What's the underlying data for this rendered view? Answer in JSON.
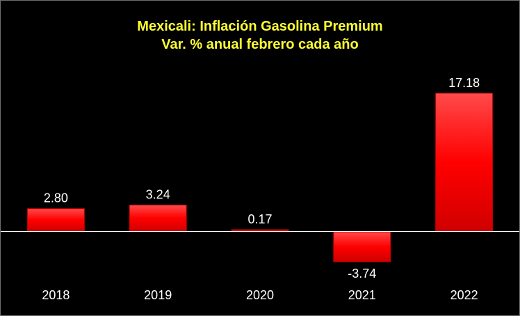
{
  "chart_data": {
    "type": "bar",
    "title": "Mexicali: Inflación Gasolina Premium",
    "subtitle": "Var. % anual febrero cada año",
    "categories": [
      "2018",
      "2019",
      "2020",
      "2021",
      "2022"
    ],
    "values": [
      2.8,
      3.24,
      0.17,
      -3.74,
      17.18
    ],
    "value_labels": [
      "2.80",
      "3.24",
      "0.17",
      "-3.74",
      "17.18"
    ],
    "xlabel": "",
    "ylabel": "",
    "ylim": [
      -5.6,
      20.2
    ],
    "grid": false,
    "legend": "none",
    "colors": {
      "bar": "#ff0000",
      "bar_highlight": "#ff4a4a",
      "bar_shadow": "#b80000",
      "axis": "#ffffff",
      "title": "#ffff33"
    }
  }
}
